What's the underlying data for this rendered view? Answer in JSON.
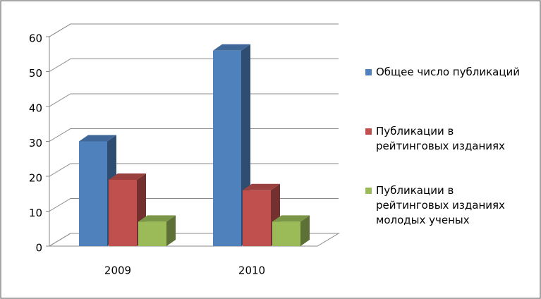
{
  "chart_data": {
    "type": "bar3d",
    "categories": [
      "2009",
      "2010"
    ],
    "series": [
      {
        "name": "Общее число публикаций",
        "color": "#4f81bd",
        "values": [
          30,
          56
        ]
      },
      {
        "name": "Публикации в рейтинговых изданиях",
        "color": "#c0504d",
        "values": [
          19,
          16
        ]
      },
      {
        "name": "Публикации в рейтинговых изданиях молодых ученых",
        "color": "#9bbb59",
        "values": [
          7,
          7
        ]
      }
    ],
    "ylim": [
      0,
      60
    ],
    "yticks": [
      0,
      10,
      20,
      30,
      40,
      50,
      60
    ],
    "grid": true,
    "legend": "right"
  }
}
